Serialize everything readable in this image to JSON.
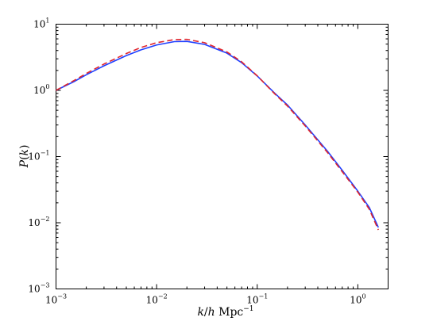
{
  "chart_data": {
    "type": "line",
    "xlabel": "k/h Mpc^-1",
    "xlabel_parts": {
      "k": "k",
      "slash": "/",
      "h": "h",
      "unit": " Mpc",
      "exp": "−1"
    },
    "ylabel": "P(k)",
    "ylabel_parts": {
      "P": "P",
      "open": "(",
      "k": "k",
      "close": ")"
    },
    "xscale": "log",
    "yscale": "log",
    "xlim": [
      0.001,
      2
    ],
    "ylim": [
      0.001,
      10
    ],
    "grid": false,
    "x_ticks": [
      {
        "value": 0.001,
        "base": "10",
        "exp": "−3"
      },
      {
        "value": 0.01,
        "base": "10",
        "exp": "−2"
      },
      {
        "value": 0.1,
        "base": "10",
        "exp": "−1"
      },
      {
        "value": 1,
        "base": "10",
        "exp": "0"
      }
    ],
    "y_ticks": [
      {
        "value": 0.001,
        "base": "10",
        "exp": "−3"
      },
      {
        "value": 0.01,
        "base": "10",
        "exp": "−2"
      },
      {
        "value": 0.1,
        "base": "10",
        "exp": "−1"
      },
      {
        "value": 1,
        "base": "10",
        "exp": "0"
      },
      {
        "value": 10,
        "base": "10",
        "exp": "1"
      }
    ],
    "series": [
      {
        "color": "#1f3fff",
        "style": "solid",
        "x": [
          0.001,
          0.0015,
          0.002,
          0.003,
          0.005,
          0.007,
          0.01,
          0.015,
          0.02,
          0.03,
          0.05,
          0.07,
          0.1,
          0.15,
          0.2,
          0.3,
          0.5,
          0.7,
          1.0,
          1.3,
          1.6
        ],
        "y": [
          1.0,
          1.35,
          1.72,
          2.35,
          3.35,
          4.1,
          4.85,
          5.45,
          5.5,
          4.95,
          3.65,
          2.62,
          1.65,
          0.9,
          0.6,
          0.3,
          0.12,
          0.062,
          0.03,
          0.017,
          0.0085
        ]
      },
      {
        "color": "#e0262e",
        "style": "dashed",
        "x": [
          0.001,
          0.0015,
          0.002,
          0.003,
          0.005,
          0.007,
          0.01,
          0.015,
          0.02,
          0.03,
          0.05,
          0.07,
          0.1,
          0.15,
          0.2,
          0.3,
          0.5,
          0.7,
          1.0,
          1.3,
          1.6
        ],
        "y": [
          1.0,
          1.4,
          1.8,
          2.5,
          3.6,
          4.45,
          5.25,
          5.85,
          5.9,
          5.25,
          3.8,
          2.7,
          1.66,
          0.88,
          0.58,
          0.29,
          0.115,
          0.059,
          0.029,
          0.016,
          0.0078
        ]
      }
    ]
  }
}
